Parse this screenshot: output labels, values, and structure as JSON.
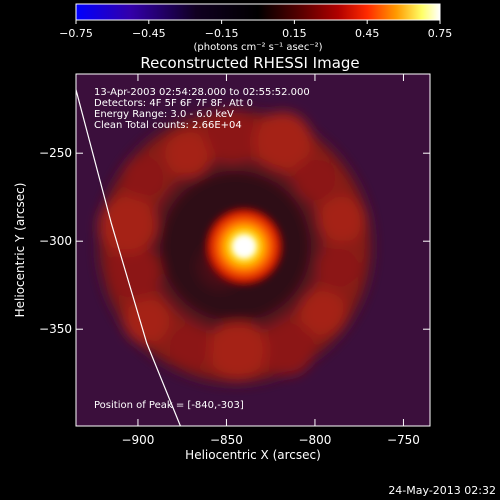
{
  "chart_data": {
    "type": "heatmap",
    "title": "Reconstructed RHESSI Image",
    "xlabel": "Heliocentric X (arcsec)",
    "ylabel": "Heliocentric Y (arcsec)",
    "xlim": [
      -935,
      -735
    ],
    "ylim": [
      -405,
      -205
    ],
    "xticks": [
      -900,
      -850,
      -800,
      -750
    ],
    "xtick_labels": [
      "−900",
      "−850",
      "−800",
      "−750"
    ],
    "yticks": [
      -250,
      -300,
      -350
    ],
    "ytick_labels": [
      "−250",
      "−300",
      "−350"
    ],
    "colorbar": {
      "range": [
        -0.75,
        0.75
      ],
      "ticks": [
        -0.75,
        -0.45,
        -0.15,
        0.15,
        0.45,
        0.75
      ],
      "tick_labels": [
        "−0.75",
        "−0.45",
        "−0.15",
        "0.15",
        "0.45",
        "0.75"
      ],
      "unit_label": "(photons cm⁻² s⁻¹ asec⁻²)",
      "colormap": [
        "#0000ff",
        "#330088",
        "#1a0033",
        "#000000",
        "#5a0000",
        "#b00000",
        "#ff3300",
        "#ff9900",
        "#ffff66",
        "#ffffff"
      ]
    },
    "peak": {
      "x": -840,
      "y": -303,
      "value": 0.75
    },
    "ring": {
      "center_x": -845,
      "center_y": -303,
      "radius": 62
    },
    "annotations": [
      "13-Apr-2003 02:54:28.000 to 02:55:52.000",
      "Detectors: 4F 5F 6F 7F 8F, Att 0",
      "Energy Range: 3.0 - 6.0 keV",
      "Clean     Total counts: 2.66E+04"
    ],
    "peak_label": "Position of Peak = [-840,-303]",
    "limb_curve": [
      [
        -935,
        -214
      ],
      [
        -915,
        -290
      ],
      [
        -895,
        -358
      ],
      [
        -876,
        -405
      ]
    ]
  },
  "footer_timestamp": "24-May-2013 02:32"
}
